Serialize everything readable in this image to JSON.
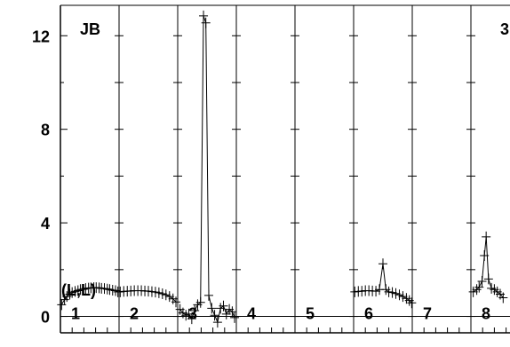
{
  "chart_data": {
    "type": "scatter",
    "title": "JB",
    "corner_label": "3",
    "bottom_label": "(L,L)",
    "ylim": [
      -0.7,
      13.3
    ],
    "y_ticks": [
      "0",
      "4",
      "8",
      "12"
    ],
    "grid": true,
    "panels": [
      {
        "label": "1",
        "points": [
          [
            0.02,
            0.5
          ],
          [
            0.07,
            0.72
          ],
          [
            0.11,
            0.85
          ],
          [
            0.16,
            0.95
          ],
          [
            0.2,
            1.02
          ],
          [
            0.25,
            1.07
          ],
          [
            0.3,
            1.1
          ],
          [
            0.34,
            1.15
          ],
          [
            0.39,
            1.16
          ],
          [
            0.43,
            1.19
          ],
          [
            0.48,
            1.21
          ],
          [
            0.52,
            1.22
          ],
          [
            0.57,
            1.23
          ],
          [
            0.61,
            1.23
          ],
          [
            0.66,
            1.22
          ],
          [
            0.7,
            1.2
          ],
          [
            0.75,
            1.19
          ],
          [
            0.8,
            1.17
          ],
          [
            0.84,
            1.15
          ],
          [
            0.89,
            1.12
          ],
          [
            0.94,
            1.1
          ],
          [
            0.98,
            1.05
          ]
        ]
      },
      {
        "label": "2",
        "points": [
          [
            0.02,
            1.05
          ],
          [
            0.08,
            1.07
          ],
          [
            0.14,
            1.08
          ],
          [
            0.2,
            1.09
          ],
          [
            0.26,
            1.1
          ],
          [
            0.32,
            1.1
          ],
          [
            0.38,
            1.1
          ],
          [
            0.44,
            1.09
          ],
          [
            0.5,
            1.08
          ],
          [
            0.56,
            1.06
          ],
          [
            0.62,
            1.04
          ],
          [
            0.68,
            1.01
          ],
          [
            0.74,
            0.97
          ],
          [
            0.8,
            0.92
          ],
          [
            0.86,
            0.85
          ],
          [
            0.92,
            0.75
          ],
          [
            0.97,
            0.62
          ]
        ]
      },
      {
        "label": "3",
        "points": [
          [
            0.04,
            0.3
          ],
          [
            0.09,
            0.15
          ],
          [
            0.14,
            0.05
          ],
          [
            0.19,
            0.1
          ],
          [
            0.24,
            -0.1
          ],
          [
            0.29,
            0.25
          ],
          [
            0.34,
            0.5
          ],
          [
            0.39,
            0.6
          ],
          [
            0.44,
            12.85
          ],
          [
            0.48,
            12.55
          ],
          [
            0.53,
            0.9
          ],
          [
            0.58,
            0.35
          ],
          [
            0.63,
            0.05
          ],
          [
            0.68,
            -0.25
          ],
          [
            0.73,
            0.35
          ],
          [
            0.78,
            0.45
          ],
          [
            0.83,
            0.1
          ],
          [
            0.88,
            0.3
          ],
          [
            0.93,
            0.2
          ],
          [
            0.97,
            -0.05
          ]
        ]
      },
      {
        "label": "4",
        "points": []
      },
      {
        "label": "5",
        "points": []
      },
      {
        "label": "6",
        "points": [
          [
            0.02,
            1.05
          ],
          [
            0.08,
            1.07
          ],
          [
            0.14,
            1.08
          ],
          [
            0.2,
            1.1
          ],
          [
            0.26,
            1.1
          ],
          [
            0.32,
            1.09
          ],
          [
            0.38,
            1.08
          ],
          [
            0.44,
            1.15
          ],
          [
            0.5,
            2.25
          ],
          [
            0.55,
            1.15
          ],
          [
            0.6,
            1.05
          ],
          [
            0.66,
            1.02
          ],
          [
            0.72,
            0.98
          ],
          [
            0.78,
            0.92
          ],
          [
            0.84,
            0.85
          ],
          [
            0.9,
            0.77
          ],
          [
            0.95,
            0.68
          ],
          [
            0.99,
            0.58
          ]
        ]
      },
      {
        "label": "7",
        "points": []
      },
      {
        "label": "8",
        "points": [
          [
            0.04,
            1.05
          ],
          [
            0.1,
            1.15
          ],
          [
            0.14,
            1.25
          ],
          [
            0.19,
            1.5
          ],
          [
            0.23,
            2.6
          ],
          [
            0.26,
            3.4
          ],
          [
            0.3,
            1.6
          ],
          [
            0.35,
            1.2
          ],
          [
            0.4,
            1.15
          ],
          [
            0.45,
            1.05
          ],
          [
            0.5,
            0.95
          ],
          [
            0.55,
            0.8
          ]
        ]
      }
    ]
  }
}
